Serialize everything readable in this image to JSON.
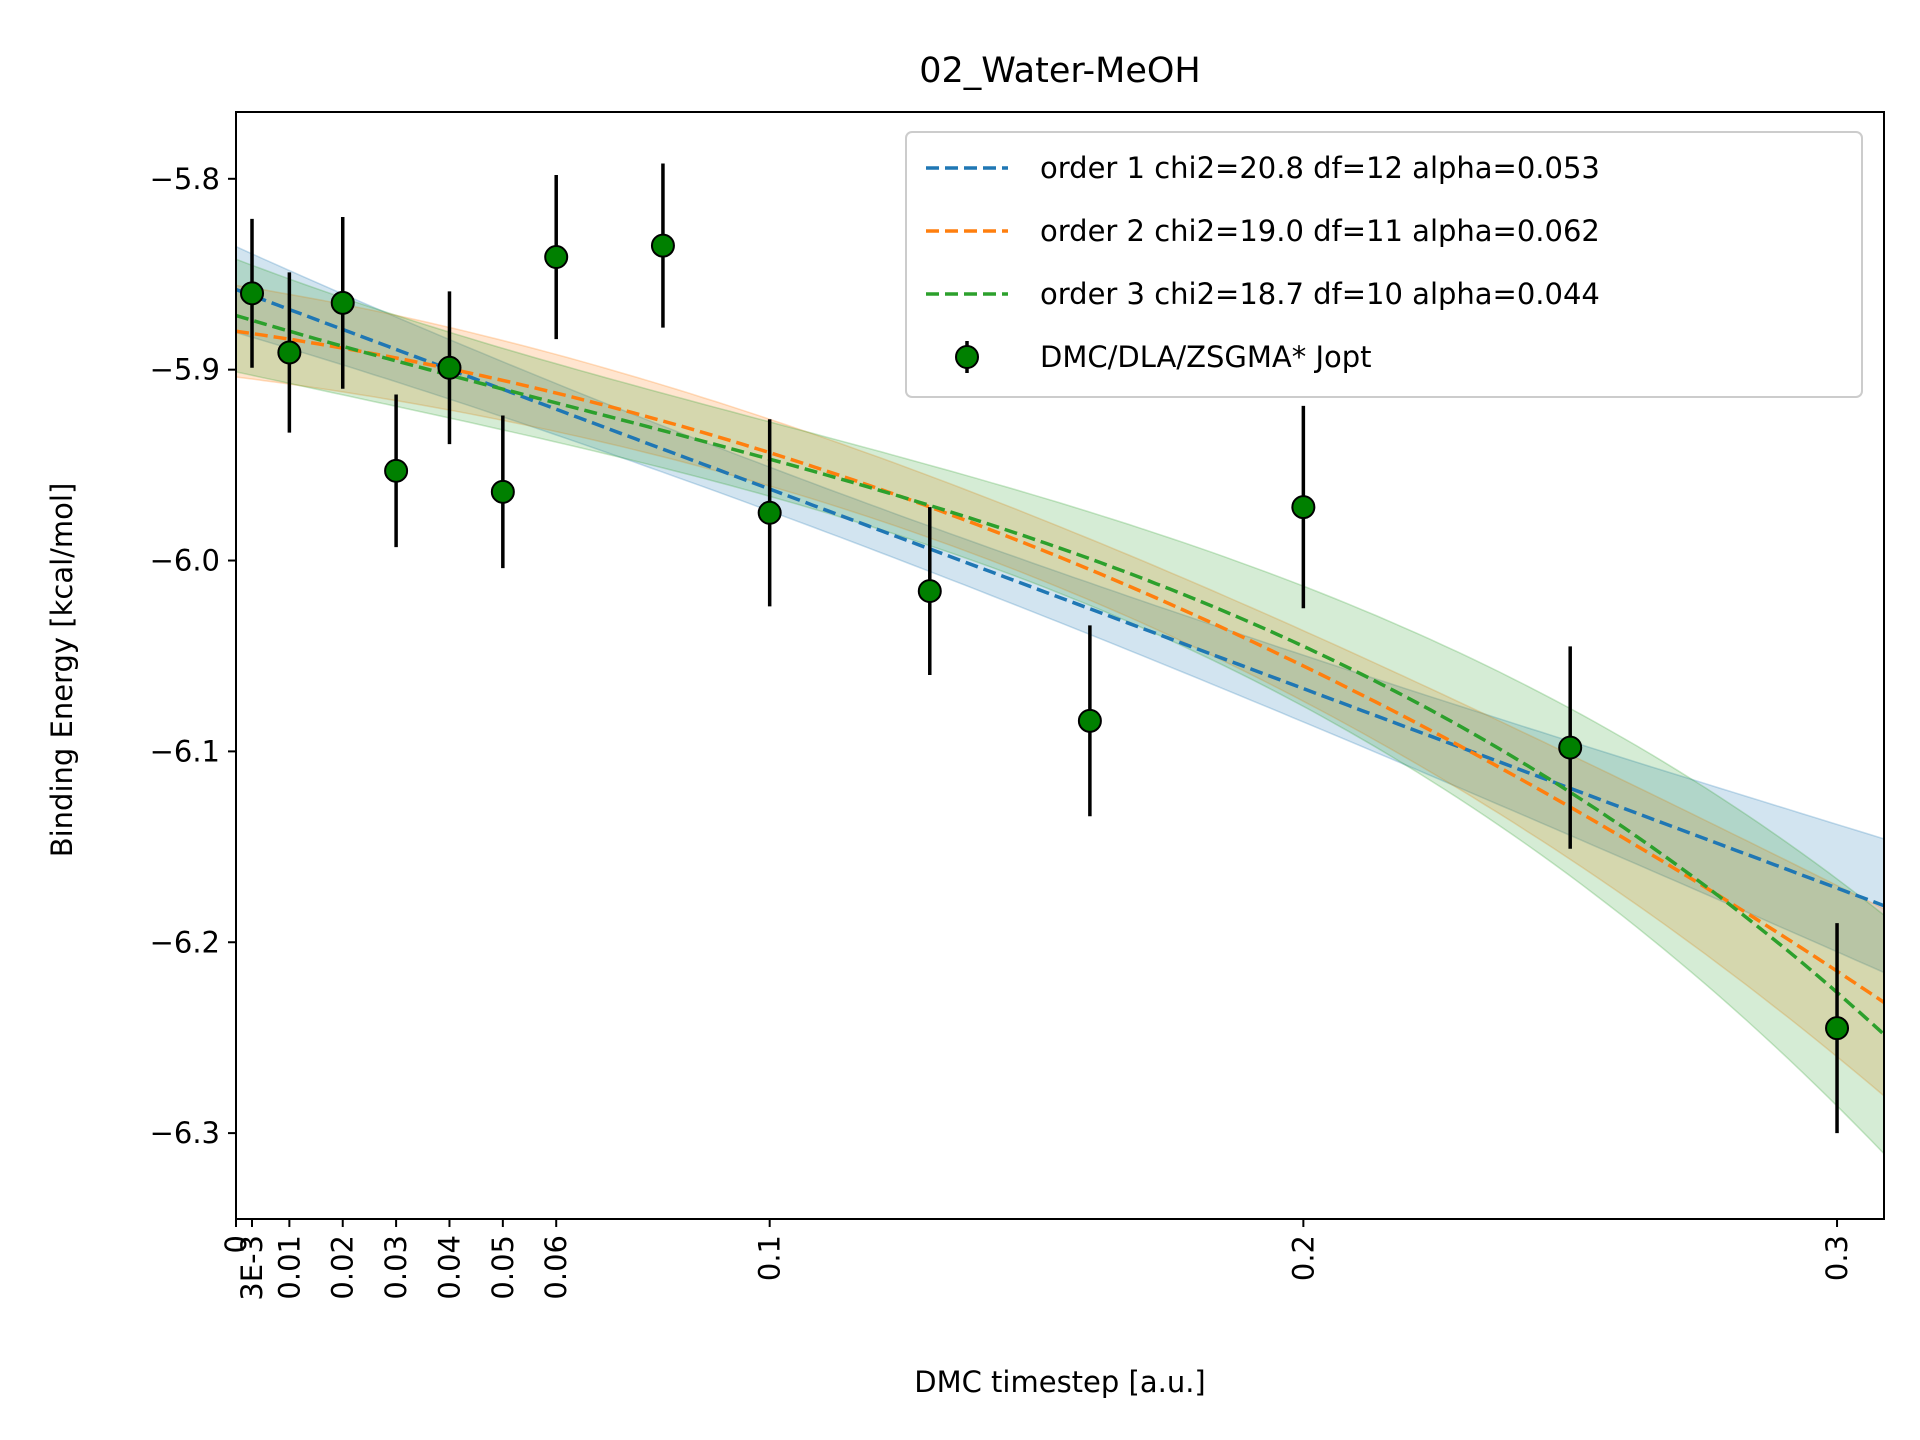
{
  "chart_data": {
    "type": "scatter",
    "title": "02_Water-MeOH",
    "xlabel": "DMC timestep [a.u.]",
    "ylabel": "Binding Energy [kcal/mol]",
    "xlim": [
      0,
      0.3088
    ],
    "ylim": [
      -6.345,
      -5.765
    ],
    "x_ticks": [
      {
        "value": 0,
        "label": "0"
      },
      {
        "value": 0.003,
        "label": "3E-3"
      },
      {
        "value": 0.01,
        "label": "0.01"
      },
      {
        "value": 0.02,
        "label": "0.02"
      },
      {
        "value": 0.03,
        "label": "0.03"
      },
      {
        "value": 0.04,
        "label": "0.04"
      },
      {
        "value": 0.05,
        "label": "0.05"
      },
      {
        "value": 0.06,
        "label": "0.06"
      },
      {
        "value": 0.1,
        "label": "0.1"
      },
      {
        "value": 0.2,
        "label": "0.2"
      },
      {
        "value": 0.3,
        "label": "0.3"
      }
    ],
    "y_ticks": [
      {
        "value": -5.8,
        "label": "−5.8"
      },
      {
        "value": -5.9,
        "label": "−5.9"
      },
      {
        "value": -6.0,
        "label": "−6.0"
      },
      {
        "value": -6.1,
        "label": "−6.1"
      },
      {
        "value": -6.2,
        "label": "−6.2"
      },
      {
        "value": -6.3,
        "label": "−6.3"
      }
    ],
    "grid": false,
    "legend_position": "upper-right",
    "points": {
      "name": "DMC/DLA/ZSGMA* Jopt",
      "color": "#008000",
      "x": [
        0.003,
        0.01,
        0.02,
        0.03,
        0.04,
        0.05,
        0.06,
        0.08,
        0.1,
        0.13,
        0.16,
        0.2,
        0.25,
        0.3
      ],
      "y": [
        -5.86,
        -5.891,
        -5.865,
        -5.953,
        -5.899,
        -5.964,
        -5.841,
        -5.835,
        -5.975,
        -6.016,
        -6.084,
        -5.972,
        -6.098,
        -6.245
      ],
      "err": [
        0.039,
        0.042,
        0.045,
        0.04,
        0.04,
        0.04,
        0.043,
        0.043,
        0.049,
        0.044,
        0.05,
        0.053,
        0.053,
        0.055
      ]
    },
    "series": [
      {
        "name": "order 1 chi2=20.8 df=12 alpha=0.053",
        "color": "#1f77b4",
        "order": 1,
        "fit_at_0": -5.859,
        "fit_at_0_3088": -6.18,
        "band_x": [
          0,
          0.1,
          0.2,
          0.3088
        ],
        "band_low": [
          -5.882,
          -5.975,
          -6.085,
          -6.215
        ],
        "band_high": [
          -5.837,
          -5.952,
          -6.05,
          -6.145
        ]
      },
      {
        "name": "order 2 chi2=19.0 df=11 alpha=0.062",
        "color": "#ff7f0e",
        "order": 2,
        "band_x": [
          0,
          0.1,
          0.2,
          0.3088
        ],
        "band_low": [
          -5.905,
          -5.96,
          -6.072,
          -6.28
        ],
        "band_high": [
          -5.857,
          -5.925,
          -6.035,
          -6.182
        ]
      },
      {
        "name": "order 3 chi2=18.7 df=10 alpha=0.044",
        "color": "#2ca02c",
        "order": 3,
        "band_x": [
          0,
          0.1,
          0.2,
          0.3088
        ],
        "band_low": [
          -5.902,
          -5.962,
          -6.075,
          -6.315
        ],
        "band_high": [
          -5.843,
          -5.923,
          -6.012,
          -6.19
        ]
      }
    ],
    "legend_points_label": "DMC/DLA/ZSGMA* Jopt"
  }
}
